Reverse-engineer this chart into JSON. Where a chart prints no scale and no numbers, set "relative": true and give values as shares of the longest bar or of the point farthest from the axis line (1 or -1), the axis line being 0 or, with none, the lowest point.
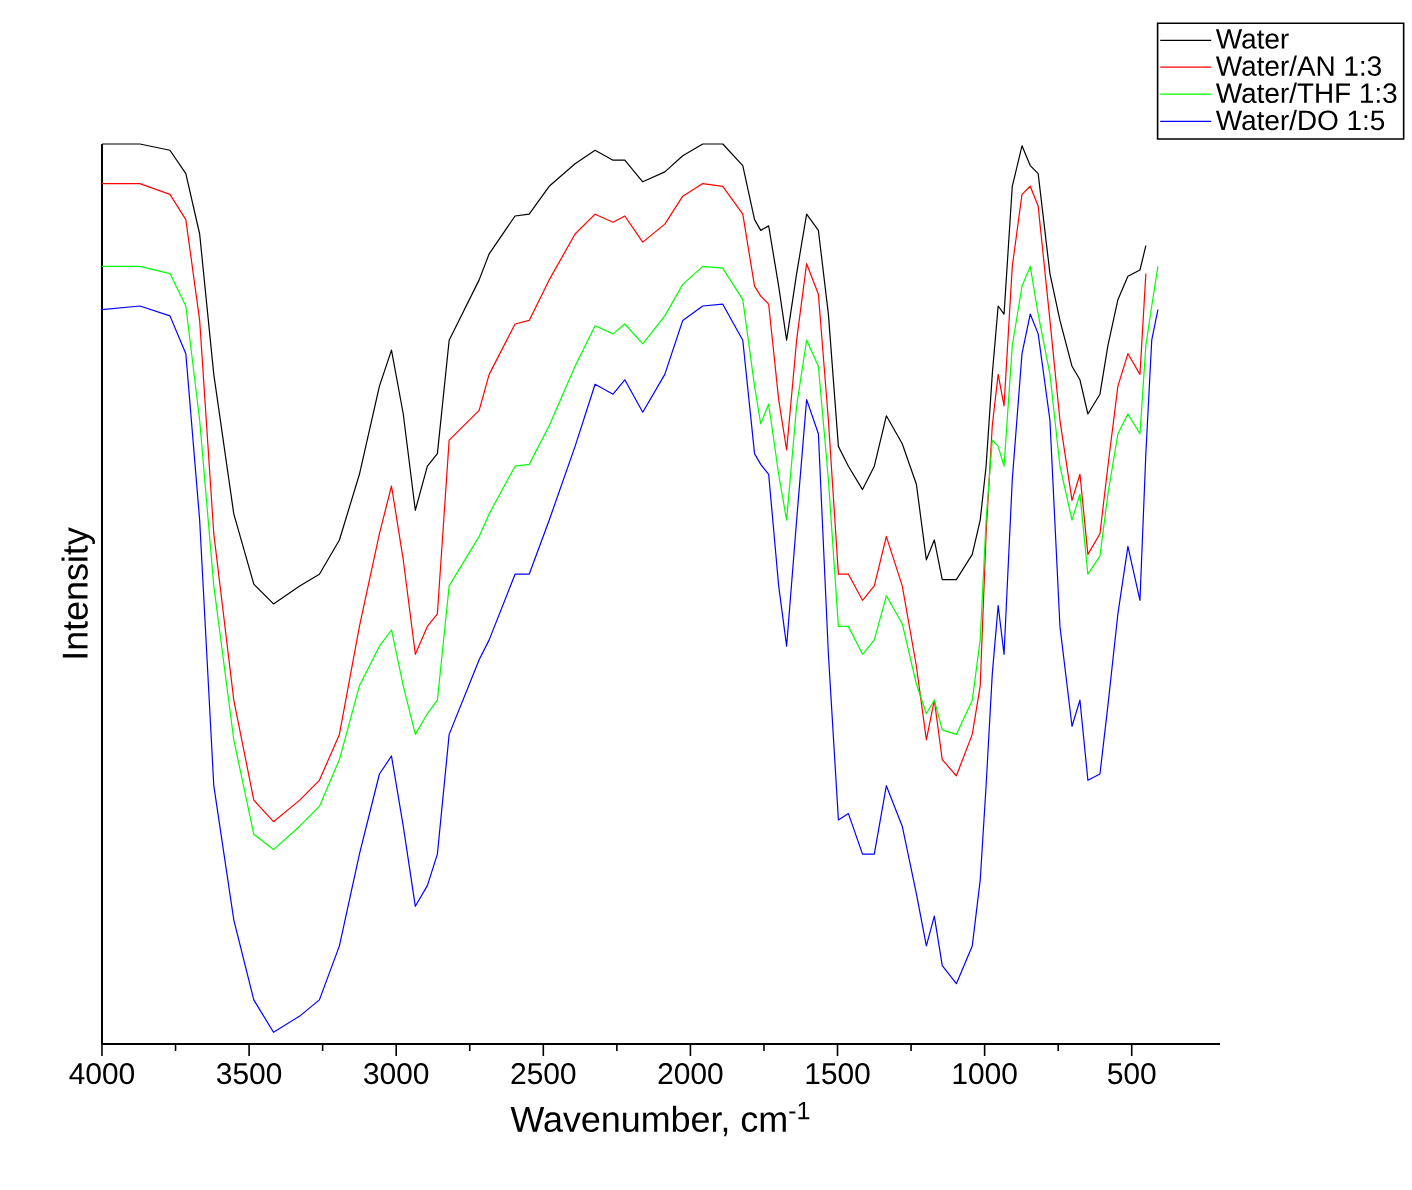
{
  "chart_data": {
    "type": "line",
    "relative": true,
    "xlabel": "Wavenumber, cm$^{-1}$",
    "ylabel": "Intensity",
    "xlim": [
      4000,
      200
    ],
    "xticks": [
      4000,
      3500,
      3000,
      2500,
      2000,
      1500,
      1000,
      500
    ],
    "legend": "top right",
    "marker": "none",
    "x": [
      4000,
      3871,
      3769,
      3715,
      3668,
      3620,
      3552,
      3484,
      3417,
      3328,
      3261,
      3193,
      3125,
      3057,
      3016,
      2976,
      2935,
      2894,
      2860,
      2820,
      2718,
      2684,
      2596,
      2548,
      2480,
      2392,
      2324,
      2263,
      2223,
      2162,
      2087,
      2026,
      1958,
      1890,
      1822,
      1782,
      1761,
      1734,
      1700,
      1673,
      1639,
      1605,
      1565,
      1531,
      1497,
      1463,
      1415,
      1375,
      1334,
      1280,
      1232,
      1198,
      1171,
      1144,
      1096,
      1042,
      1015,
      995,
      974,
      954,
      934,
      906,
      873,
      845,
      818,
      778,
      744,
      703,
      676,
      649,
      608,
      581,
      547,
      513,
      472,
      452,
      432,
      411
    ],
    "series": [
      {
        "name": "Water",
        "color": "#000000",
        "values": [
          1.0,
          1.0,
          0.993,
          0.967,
          0.9,
          0.744,
          0.589,
          0.511,
          0.489,
          0.509,
          0.522,
          0.56,
          0.633,
          0.731,
          0.771,
          0.7,
          0.593,
          0.642,
          0.656,
          0.782,
          0.849,
          0.878,
          0.92,
          0.922,
          0.953,
          0.978,
          0.993,
          0.982,
          0.982,
          0.958,
          0.969,
          0.987,
          1.0,
          1.0,
          0.976,
          0.916,
          0.904,
          0.909,
          0.842,
          0.782,
          0.856,
          0.922,
          0.904,
          0.811,
          0.664,
          0.642,
          0.616,
          0.642,
          0.698,
          0.667,
          0.622,
          0.538,
          0.56,
          0.516,
          0.516,
          0.544,
          0.582,
          0.642,
          0.744,
          0.82,
          0.811,
          0.953,
          0.998,
          0.976,
          0.967,
          0.856,
          0.804,
          0.753,
          0.738,
          0.7,
          0.722,
          0.776,
          0.827,
          0.853,
          0.86,
          0.887,
          null,
          null
        ]
      },
      {
        "name": "Water/AN 1:3",
        "color": "#ff0000",
        "values": [
          0.956,
          0.956,
          0.944,
          0.916,
          0.804,
          0.567,
          0.382,
          0.271,
          0.247,
          0.271,
          0.293,
          0.344,
          0.464,
          0.567,
          0.62,
          0.538,
          0.433,
          0.464,
          0.478,
          0.671,
          0.704,
          0.744,
          0.8,
          0.804,
          0.849,
          0.9,
          0.922,
          0.913,
          0.92,
          0.891,
          0.911,
          0.942,
          0.956,
          0.953,
          0.922,
          0.842,
          0.831,
          0.822,
          0.716,
          0.66,
          0.782,
          0.867,
          0.833,
          0.693,
          0.522,
          0.522,
          0.493,
          0.509,
          0.564,
          0.509,
          0.42,
          0.338,
          0.382,
          0.316,
          0.298,
          0.344,
          0.398,
          0.567,
          0.687,
          0.744,
          0.709,
          0.864,
          0.944,
          0.953,
          0.931,
          0.804,
          0.693,
          0.604,
          0.633,
          0.544,
          0.567,
          0.642,
          0.731,
          0.767,
          0.744,
          0.856,
          null,
          null
        ]
      },
      {
        "name": "Water/THF 1:3",
        "color": "#00ff00",
        "values": [
          0.864,
          0.864,
          0.856,
          0.82,
          0.693,
          0.509,
          0.338,
          0.233,
          0.216,
          0.242,
          0.264,
          0.316,
          0.398,
          0.442,
          0.46,
          0.398,
          0.344,
          0.367,
          0.382,
          0.509,
          0.564,
          0.589,
          0.642,
          0.644,
          0.687,
          0.753,
          0.798,
          0.789,
          0.8,
          0.778,
          0.809,
          0.844,
          0.864,
          0.862,
          0.827,
          0.731,
          0.689,
          0.711,
          0.633,
          0.582,
          0.709,
          0.782,
          0.753,
          0.627,
          0.464,
          0.464,
          0.433,
          0.449,
          0.498,
          0.467,
          0.4,
          0.367,
          0.382,
          0.349,
          0.344,
          0.382,
          0.449,
          0.582,
          0.671,
          0.664,
          0.642,
          0.776,
          0.842,
          0.864,
          0.811,
          0.744,
          0.642,
          0.582,
          0.611,
          0.522,
          0.542,
          0.611,
          0.678,
          0.7,
          0.678,
          0.776,
          0.82,
          0.864
        ]
      },
      {
        "name": "Water/DO 1:5",
        "color": "#0000ff",
        "values": [
          0.816,
          0.82,
          0.809,
          0.767,
          0.582,
          0.287,
          0.138,
          0.049,
          0.013,
          0.031,
          0.049,
          0.109,
          0.211,
          0.3,
          0.32,
          0.242,
          0.153,
          0.176,
          0.211,
          0.344,
          0.427,
          0.449,
          0.522,
          0.522,
          0.582,
          0.664,
          0.733,
          0.722,
          0.738,
          0.702,
          0.744,
          0.804,
          0.82,
          0.822,
          0.782,
          0.656,
          0.644,
          0.633,
          0.509,
          0.442,
          0.582,
          0.716,
          0.678,
          0.433,
          0.249,
          0.256,
          0.211,
          0.211,
          0.287,
          0.242,
          0.167,
          0.109,
          0.142,
          0.087,
          0.067,
          0.109,
          0.182,
          0.287,
          0.411,
          0.487,
          0.433,
          0.627,
          0.767,
          0.811,
          0.789,
          0.693,
          0.464,
          0.353,
          0.382,
          0.293,
          0.3,
          0.376,
          0.478,
          0.553,
          0.493,
          0.656,
          0.782,
          0.816
        ]
      }
    ]
  }
}
